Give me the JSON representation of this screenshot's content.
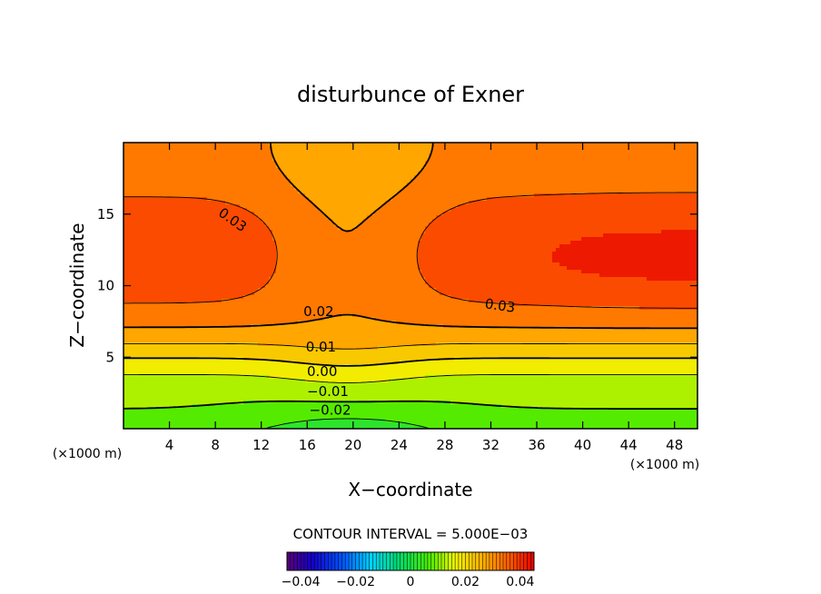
{
  "chart_data": {
    "type": "heatmap",
    "subtype": "filled-contour",
    "title": "disturbunce of Exner",
    "xlabel": "X−coordinate",
    "ylabel": "Z−coordinate",
    "x_unit": "(×1000 m)",
    "y_unit": "(×1000 m)",
    "xlim": [
      0,
      50
    ],
    "ylim": [
      0,
      20
    ],
    "x_ticks": [
      4,
      8,
      12,
      16,
      20,
      24,
      28,
      32,
      36,
      40,
      44,
      48
    ],
    "y_ticks": [
      5,
      10,
      15
    ],
    "contour_interval_text": "CONTOUR INTERVAL = 5.000E−03",
    "contour_interval": 0.005,
    "value_range": [
      -0.045,
      0.045
    ],
    "contour_labels": [
      {
        "text": "0.03",
        "x": 9.5,
        "z": 14.6
      },
      {
        "text": "0.03",
        "x": 32.8,
        "z": 8.6
      },
      {
        "text": "0.02",
        "x": 17.0,
        "z": 8.2
      },
      {
        "text": "0.01",
        "x": 17.2,
        "z": 5.7
      },
      {
        "text": "0.00",
        "x": 17.3,
        "z": 4.0
      },
      {
        "text": "−0.01",
        "x": 17.8,
        "z": 2.6
      },
      {
        "text": "−0.02",
        "x": 18.0,
        "z": 1.3
      }
    ],
    "colorbar": {
      "ticks": [
        "−0.04",
        "−0.02",
        "0",
        "0.02",
        "0.04"
      ],
      "tick_values": [
        -0.04,
        -0.02,
        0,
        0.02,
        0.04
      ],
      "range": [
        -0.045,
        0.045
      ]
    }
  }
}
